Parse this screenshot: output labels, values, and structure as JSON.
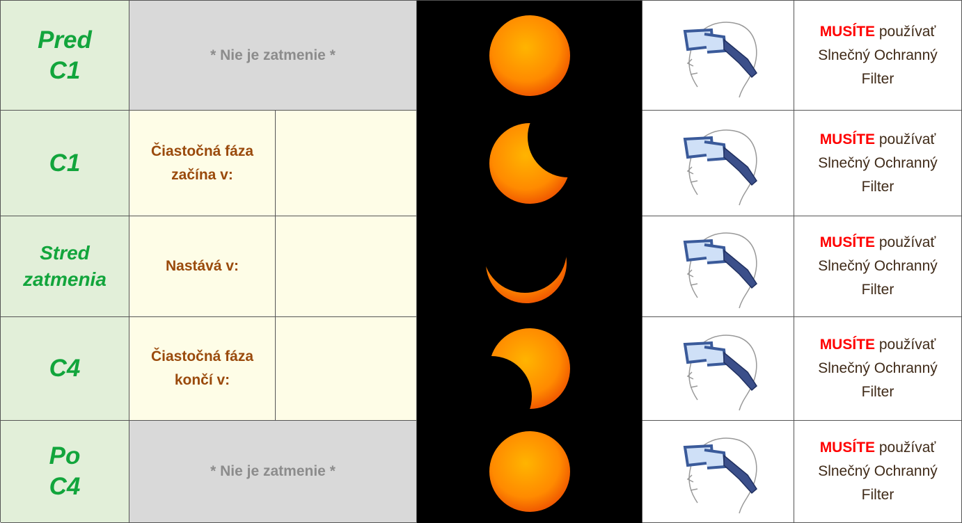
{
  "table": {
    "rows": [
      {
        "phase": [
          "Pred",
          "C1"
        ],
        "note": "* Nie je zatmenie *",
        "warning": {
          "strong": "MUSÍTE",
          "text": "používať Slnečný Ochranný Filter"
        }
      },
      {
        "phase": [
          "C1"
        ],
        "event": "Čiastočná fáza začína v:",
        "warning": {
          "strong": "MUSÍTE",
          "text": "používať Slnečný Ochranný Filter"
        }
      },
      {
        "phase": [
          "Stred",
          "zatmenia"
        ],
        "event": "Nastává v:",
        "warning": {
          "strong": "MUSÍTE",
          "text": "používať Slnečný Ochranný Filter"
        }
      },
      {
        "phase": [
          "C4"
        ],
        "event": "Čiastočná fáza končí v:",
        "warning": {
          "strong": "MUSÍTE",
          "text": "používať Slnečný Ochranný Filter"
        }
      },
      {
        "phase": [
          "Po",
          "C4"
        ],
        "note": "* Nie je zatmenie *",
        "warning": {
          "strong": "MUSÍTE",
          "text": "používať Slnečný Ochranný Filter"
        }
      }
    ]
  }
}
